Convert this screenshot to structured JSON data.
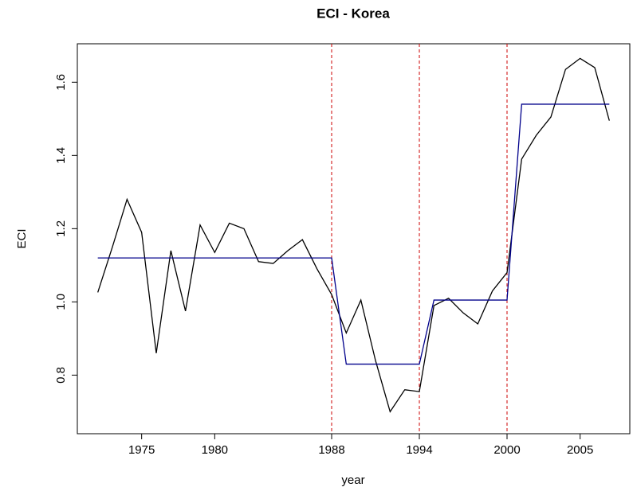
{
  "chart_data": {
    "type": "line",
    "title": "ECI - Korea",
    "x_label": "year",
    "y_label": "ECI",
    "x": [
      1972,
      1973,
      1974,
      1975,
      1976,
      1977,
      1978,
      1979,
      1980,
      1981,
      1982,
      1983,
      1984,
      1985,
      1986,
      1987,
      1988,
      1989,
      1990,
      1991,
      1992,
      1993,
      1994,
      1995,
      1996,
      1997,
      1998,
      1999,
      2000,
      2001,
      2002,
      2003,
      2004,
      2005,
      2006,
      2007
    ],
    "series": [
      {
        "color": "#000000",
        "values": [
          1.026,
          1.15,
          1.28,
          1.19,
          0.86,
          1.14,
          0.975,
          1.21,
          1.135,
          1.215,
          1.2,
          1.11,
          1.105,
          1.14,
          1.17,
          1.09,
          1.02,
          0.915,
          1.005,
          0.84,
          0.7,
          0.76,
          0.755,
          0.99,
          1.01,
          0.97,
          0.94,
          1.03,
          1.08,
          1.39,
          1.455,
          1.505,
          1.635,
          1.665,
          1.64,
          1.495
        ]
      },
      {
        "color": "#00008b",
        "values": [
          1.12,
          1.12,
          1.12,
          1.12,
          1.12,
          1.12,
          1.12,
          1.12,
          1.12,
          1.12,
          1.12,
          1.12,
          1.12,
          1.12,
          1.12,
          1.12,
          1.12,
          0.83,
          0.83,
          0.83,
          0.83,
          0.83,
          0.83,
          1.005,
          1.005,
          1.005,
          1.005,
          1.005,
          1.005,
          1.54,
          1.54,
          1.54,
          1.54,
          1.54,
          1.54,
          1.54
        ]
      }
    ],
    "vlines": [
      1988,
      1994,
      2000
    ],
    "vline_color": "#cc0000",
    "xlim": [
      1970.6,
      2008.4
    ],
    "ylim": [
      0.64,
      1.705
    ],
    "xticks": [
      1975,
      1980,
      1988,
      1994,
      2000,
      2005
    ],
    "yticks": [
      0.8,
      {
        "value": 1.0,
        "label": "1.0"
      },
      1.2,
      1.4,
      1.6
    ]
  }
}
